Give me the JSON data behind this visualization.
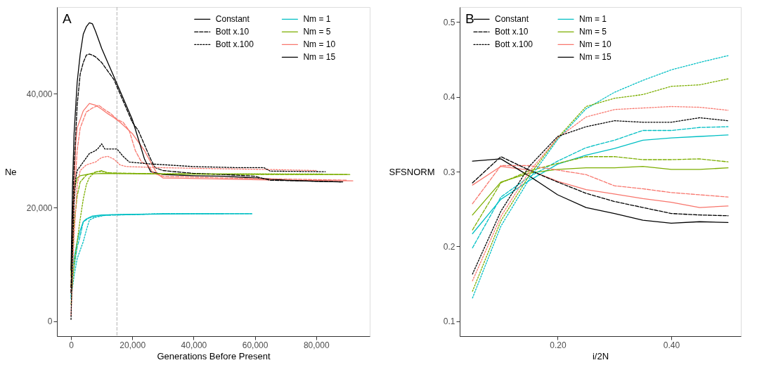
{
  "chart_data": [
    {
      "type": "line",
      "title": "A",
      "xlabel": "Generations Before Present",
      "ylabel": "Ne",
      "xlim": [
        -4600,
        97500
      ],
      "ylim": [
        -2630,
        55260
      ],
      "xticks": [
        {
          "value": 0,
          "label": "0"
        },
        {
          "value": 20000,
          "label": "20,000"
        },
        {
          "value": 40000,
          "label": "40,000"
        },
        {
          "value": 60000,
          "label": "60,000"
        },
        {
          "value": 80000,
          "label": "80,000"
        }
      ],
      "yticks": [
        {
          "value": 0,
          "label": "0"
        },
        {
          "value": 20000,
          "label": "20,000"
        },
        {
          "value": 40000,
          "label": "40,000"
        }
      ],
      "grid": false,
      "legend": "top right",
      "annotations": [
        "Constant",
        "Bott x.10",
        "Bott x.100"
      ],
      "ref_lines": [
        {
          "axis": "x",
          "value": 15000,
          "color": "#bebebe",
          "line_style": "dashed"
        }
      ],
      "series": [
        {
          "name": "Nm = 1",
          "color": "#00bfc4",
          "line_style": "solid",
          "x": [
            0,
            500,
            1000,
            2000,
            3000,
            4000,
            5000,
            7000,
            10000,
            20000,
            40000,
            59000
          ],
          "values": [
            6000,
            9500,
            11000,
            14000,
            16000,
            17500,
            18000,
            18500,
            18700,
            18800,
            18900,
            18900
          ]
        },
        {
          "color": "#00bfc4",
          "line_style": "dashed",
          "x": [
            0,
            500,
            1000,
            2000,
            3000,
            4000,
            6000,
            10000,
            30000,
            59000
          ],
          "values": [
            4000,
            8000,
            9500,
            13000,
            15000,
            17500,
            18200,
            18600,
            18900,
            18900
          ]
        },
        {
          "color": "#00bfc4",
          "line_style": "dotted",
          "x": [
            0,
            500,
            1000,
            2000,
            3000,
            4000,
            5000,
            6000,
            8000,
            12000,
            30000,
            50000
          ],
          "values": [
            4500,
            6000,
            8000,
            11000,
            12500,
            14000,
            16000,
            17800,
            18300,
            18700,
            18900,
            18900
          ]
        },
        {
          "name": "Nm = 5",
          "color": "#7cae00",
          "line_style": "solid",
          "x": [
            0,
            500,
            1000,
            2000,
            3000,
            6000,
            10000,
            30000,
            60000,
            91000
          ],
          "values": [
            8000,
            18000,
            23000,
            25200,
            25600,
            25900,
            26000,
            25900,
            25900,
            25800
          ]
        },
        {
          "color": "#7cae00",
          "line_style": "dashed",
          "x": [
            0,
            1000,
            2000,
            3000,
            5000,
            8000,
            10000,
            12000,
            30000,
            60000,
            90000
          ],
          "values": [
            6000,
            17000,
            22000,
            24500,
            25700,
            26200,
            26500,
            26100,
            25900,
            25800,
            25800
          ]
        },
        {
          "color": "#7cae00",
          "line_style": "dotted",
          "x": [
            0,
            1000,
            2000,
            3000,
            4000,
            5000,
            6000,
            8000,
            10000,
            14000,
            40000,
            70000,
            82000
          ],
          "values": [
            3000,
            10000,
            14000,
            18000,
            21500,
            24000,
            25300,
            26300,
            26300,
            26000,
            25900,
            25900,
            25900
          ]
        },
        {
          "name": "Nm = 10",
          "color": "#f8766d",
          "line_style": "solid",
          "x": [
            0,
            500,
            1000,
            1500,
            2000,
            4000,
            6000,
            8000,
            10000,
            12000,
            14000,
            16000,
            18000,
            20000,
            22000,
            24000,
            26000,
            28000,
            30000,
            50000,
            70000,
            92000
          ],
          "values": [
            6000,
            16000,
            24000,
            31000,
            34000,
            37000,
            38300,
            38000,
            37300,
            36500,
            35800,
            35000,
            34000,
            33000,
            31500,
            30000,
            28000,
            26000,
            25200,
            25000,
            24800,
            24700
          ]
        },
        {
          "color": "#f8766d",
          "line_style": "dashed",
          "x": [
            0,
            500,
            1000,
            2000,
            3000,
            5000,
            7000,
            9000,
            11000,
            13000,
            15000,
            17000,
            19000,
            21000,
            23000,
            25000,
            27000,
            30000,
            50000,
            70000,
            90000
          ],
          "values": [
            5000,
            13000,
            21000,
            30000,
            34000,
            36800,
            37500,
            38000,
            37200,
            36500,
            35500,
            35000,
            33500,
            30000,
            28000,
            27500,
            26000,
            25500,
            25200,
            25000,
            24800
          ]
        },
        {
          "color": "#f8766d",
          "line_style": "dotted",
          "x": [
            0,
            1000,
            2000,
            3000,
            5000,
            8000,
            10000,
            12000,
            14000,
            16000,
            18000,
            30000,
            50000,
            63000,
            80000
          ],
          "values": [
            1000,
            15000,
            24000,
            26500,
            27500,
            28000,
            28800,
            29000,
            28500,
            27500,
            27200,
            27000,
            26800,
            26700,
            26500
          ]
        },
        {
          "name": "Nm = 15",
          "color": "#000000",
          "line_style": "solid",
          "x": [
            0,
            500,
            1000,
            2000,
            3000,
            4000,
            5000,
            6000,
            7000,
            8000,
            9000,
            10000,
            12000,
            14000,
            16000,
            18000,
            20000,
            22000,
            24000,
            26000,
            30000,
            40000,
            50000,
            60000,
            70000,
            80000,
            88000
          ],
          "values": [
            9000,
            24000,
            33000,
            42000,
            47000,
            50500,
            51800,
            52500,
            52300,
            51000,
            49500,
            48000,
            45500,
            43000,
            40500,
            38000,
            35500,
            32000,
            28500,
            26300,
            25800,
            25600,
            25500,
            25200,
            24800,
            24600,
            24500
          ]
        },
        {
          "color": "#000000",
          "line_style": "dashed",
          "x": [
            0,
            500,
            1000,
            2000,
            3000,
            4000,
            5000,
            6000,
            7000,
            8000,
            10000,
            12000,
            14000,
            16000,
            18000,
            20000,
            22000,
            24000,
            26000,
            27500,
            30000,
            40000,
            50000,
            60000,
            65000,
            75000,
            89000
          ],
          "values": [
            5000,
            18000,
            27000,
            38000,
            43500,
            45500,
            46800,
            47000,
            46800,
            46500,
            45500,
            44000,
            42500,
            40000,
            37500,
            35000,
            33500,
            31000,
            28500,
            27000,
            26500,
            26000,
            25800,
            25500,
            24800,
            24700,
            24500
          ]
        },
        {
          "color": "#000000",
          "line_style": "dotted",
          "x": [
            0,
            500,
            1000,
            1500,
            2000,
            4000,
            6000,
            8000,
            9000,
            10000,
            11000,
            13000,
            15000,
            17000,
            19000,
            25000,
            40000,
            55000,
            63000,
            65000,
            83000
          ],
          "values": [
            300,
            12000,
            21000,
            25000,
            26500,
            28000,
            29500,
            30000,
            30500,
            31200,
            30300,
            30300,
            30300,
            29000,
            28000,
            27700,
            27200,
            27000,
            27000,
            26400,
            26300
          ]
        }
      ]
    },
    {
      "type": "line",
      "title": "B",
      "xlabel": "i/2N",
      "ylabel": "SFSNORM",
      "xlim": [
        0.0275,
        0.5225
      ],
      "ylim": [
        0.08,
        0.52
      ],
      "xticks": [
        {
          "value": 0.2,
          "label": "0.20"
        },
        {
          "value": 0.4,
          "label": "0.40"
        }
      ],
      "yticks": [
        0.1,
        0.2,
        0.3,
        0.4,
        0.5
      ],
      "grid": false,
      "legend": "top left",
      "annotations": [
        "Constant",
        "Bott x.10",
        "Bott x.100"
      ],
      "x": [
        0.05,
        0.1,
        0.15,
        0.2,
        0.25,
        0.3,
        0.35,
        0.4,
        0.45,
        0.5
      ],
      "series": [
        {
          "name": "Nm = 1",
          "color": "#00bfc4",
          "line_style": "solid",
          "values": [
            0.217,
            0.263,
            0.288,
            0.31,
            0.322,
            0.331,
            0.342,
            0.345,
            0.347,
            0.349
          ]
        },
        {
          "color": "#00bfc4",
          "line_style": "dashed",
          "values": [
            0.198,
            0.266,
            0.293,
            0.314,
            0.332,
            0.342,
            0.355,
            0.355,
            0.359,
            0.36
          ]
        },
        {
          "color": "#00bfc4",
          "line_style": "dotted",
          "values": [
            0.131,
            0.227,
            0.29,
            0.343,
            0.384,
            0.406,
            0.422,
            0.436,
            0.446,
            0.455
          ]
        },
        {
          "name": "Nm = 5",
          "color": "#7cae00",
          "line_style": "solid",
          "values": [
            0.242,
            0.286,
            0.298,
            0.303,
            0.305,
            0.305,
            0.307,
            0.303,
            0.303,
            0.305
          ]
        },
        {
          "color": "#7cae00",
          "line_style": "dashed",
          "values": [
            0.222,
            0.285,
            0.301,
            0.311,
            0.32,
            0.32,
            0.316,
            0.316,
            0.317,
            0.313
          ]
        },
        {
          "color": "#7cae00",
          "line_style": "dotted",
          "values": [
            0.14,
            0.234,
            0.295,
            0.345,
            0.387,
            0.398,
            0.403,
            0.414,
            0.416,
            0.424
          ]
        },
        {
          "name": "Nm = 10",
          "color": "#f8766d",
          "line_style": "solid",
          "values": [
            0.282,
            0.307,
            0.302,
            0.287,
            0.276,
            0.27,
            0.264,
            0.259,
            0.252,
            0.254
          ]
        },
        {
          "color": "#f8766d",
          "line_style": "dashed",
          "values": [
            0.257,
            0.308,
            0.308,
            0.302,
            0.296,
            0.281,
            0.277,
            0.272,
            0.269,
            0.266
          ]
        },
        {
          "color": "#f8766d",
          "line_style": "dotted",
          "values": [
            0.154,
            0.24,
            0.3,
            0.345,
            0.373,
            0.383,
            0.385,
            0.387,
            0.386,
            0.382
          ]
        },
        {
          "name": "Nm = 15",
          "color": "#000000",
          "line_style": "solid",
          "values": [
            0.314,
            0.317,
            0.294,
            0.269,
            0.252,
            0.244,
            0.235,
            0.231,
            0.233,
            0.232
          ]
        },
        {
          "color": "#000000",
          "line_style": "dashed",
          "values": [
            0.285,
            0.32,
            0.302,
            0.286,
            0.271,
            0.26,
            0.252,
            0.244,
            0.242,
            0.241
          ]
        },
        {
          "color": "#000000",
          "line_style": "dotted",
          "values": [
            0.163,
            0.247,
            0.307,
            0.347,
            0.36,
            0.368,
            0.366,
            0.366,
            0.372,
            0.368
          ]
        }
      ]
    }
  ]
}
